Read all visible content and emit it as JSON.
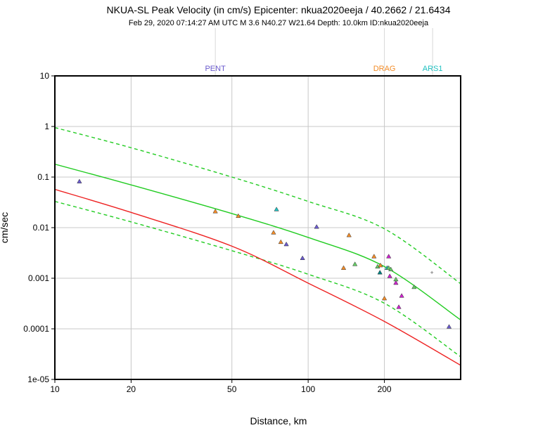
{
  "chart_data": {
    "type": "scatter",
    "title": "NKUA-SL Peak Velocity (in cm/s) Epicenter: nkua2020eeja / 40.2662 / 21.6434",
    "subtitle": "Feb 29, 2020 07:14:27 AM UTC    M 3.6    N40.27 W21.64    Depth: 10.0km    ID:nkua2020eeja",
    "xlabel": "Distance, km",
    "ylabel": "cm/sec",
    "x_scale": "log",
    "y_scale": "log",
    "xlim": [
      10,
      400
    ],
    "ylim": [
      1e-05,
      10
    ],
    "grid": true,
    "x_ticks": [
      {
        "value": 10,
        "label": "10"
      },
      {
        "value": 20,
        "label": "20"
      },
      {
        "value": 50,
        "label": "50"
      },
      {
        "value": 100,
        "label": "100"
      },
      {
        "value": 200,
        "label": "200"
      }
    ],
    "y_ticks": [
      {
        "value": 10,
        "label": "10"
      },
      {
        "value": 1,
        "label": "1"
      },
      {
        "value": 0.1,
        "label": "0.1"
      },
      {
        "value": 0.01,
        "label": "0.01"
      },
      {
        "value": 0.001,
        "label": "0.001"
      },
      {
        "value": 0.0001,
        "label": "0.0001"
      },
      {
        "value": 1e-05,
        "label": "1e-05"
      }
    ],
    "station_labels": [
      {
        "label": "PENT",
        "x": 43,
        "color": "#6a5acd"
      },
      {
        "label": "DRAG",
        "x": 200,
        "color": "#f28c28"
      },
      {
        "label": "ARS1",
        "x": 310,
        "color": "#20c0c0"
      }
    ],
    "curves": [
      {
        "style": "solid",
        "color": "#22cc22",
        "x": [
          10,
          20,
          50,
          100,
          200,
          400
        ],
        "y": [
          0.18,
          0.07,
          0.019,
          0.0064,
          0.0017,
          0.00015
        ]
      },
      {
        "style": "dashed",
        "color": "#22cc22",
        "x": [
          10,
          20,
          50,
          100,
          200,
          400
        ],
        "y": [
          0.95,
          0.38,
          0.1,
          0.033,
          0.0095,
          0.00078
        ]
      },
      {
        "style": "dashed",
        "color": "#22cc22",
        "x": [
          10,
          20,
          50,
          100,
          200,
          400
        ],
        "y": [
          0.033,
          0.013,
          0.0035,
          0.0012,
          0.00032,
          2.8e-05
        ]
      },
      {
        "style": "solid",
        "color": "#ee2222",
        "x": [
          10,
          20,
          50,
          100,
          200,
          400
        ],
        "y": [
          0.057,
          0.02,
          0.0043,
          0.0008,
          0.00014,
          1.9e-05
        ]
      }
    ],
    "points": [
      {
        "x": 12.5,
        "y": 0.082,
        "color": "#6a5acd"
      },
      {
        "x": 43,
        "y": 0.021,
        "color": "#f28c28"
      },
      {
        "x": 53,
        "y": 0.017,
        "color": "#f28c28"
      },
      {
        "x": 73,
        "y": 0.008,
        "color": "#f28c28"
      },
      {
        "x": 75,
        "y": 0.023,
        "color": "#20c0c0"
      },
      {
        "x": 78,
        "y": 0.0052,
        "color": "#f28c28"
      },
      {
        "x": 82,
        "y": 0.0047,
        "color": "#6a5acd"
      },
      {
        "x": 95,
        "y": 0.0025,
        "color": "#6a5acd"
      },
      {
        "x": 108,
        "y": 0.0104,
        "color": "#6a5acd"
      },
      {
        "x": 138,
        "y": 0.0016,
        "color": "#f28c28"
      },
      {
        "x": 145,
        "y": 0.0071,
        "color": "#f28c28"
      },
      {
        "x": 153,
        "y": 0.0019,
        "color": "#66cc66"
      },
      {
        "x": 182,
        "y": 0.0027,
        "color": "#f28c28"
      },
      {
        "x": 188,
        "y": 0.0017,
        "color": "#66cc66"
      },
      {
        "x": 192,
        "y": 0.0013,
        "color": "#008080"
      },
      {
        "x": 193,
        "y": 0.0018,
        "color": "#f28c28"
      },
      {
        "x": 200,
        "y": 0.0004,
        "color": "#f28c28"
      },
      {
        "x": 205,
        "y": 0.0016,
        "color": "#20c0c0"
      },
      {
        "x": 208,
        "y": 0.0027,
        "color": "#cc22cc"
      },
      {
        "x": 208,
        "y": 0.0016,
        "color": "#66cc66"
      },
      {
        "x": 210,
        "y": 0.0011,
        "color": "#cc22cc"
      },
      {
        "x": 212,
        "y": 0.0015,
        "color": "#66cc66"
      },
      {
        "x": 222,
        "y": 0.00095,
        "color": "#66cc66"
      },
      {
        "x": 222,
        "y": 0.00081,
        "color": "#cc22cc"
      },
      {
        "x": 228,
        "y": 0.00027,
        "color": "#cc22cc"
      },
      {
        "x": 234,
        "y": 0.00045,
        "color": "#cc22cc"
      },
      {
        "x": 262,
        "y": 0.00067,
        "color": "#66cc66"
      },
      {
        "x": 360,
        "y": 0.00011,
        "color": "#6a5acd"
      },
      {
        "x": 308,
        "y": 0.0013,
        "color": "#888888",
        "marker": "plus"
      }
    ]
  }
}
